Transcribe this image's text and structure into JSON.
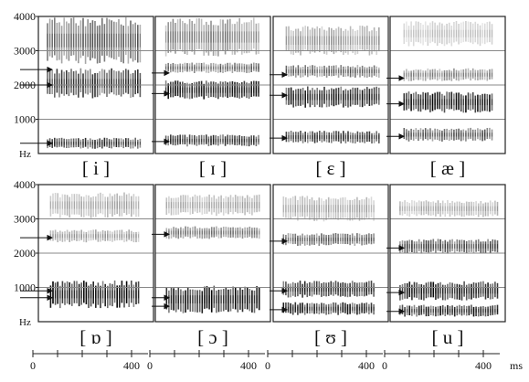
{
  "title": "",
  "y_axis": {
    "ticks": [
      "4000",
      "3000",
      "2000",
      "1000"
    ],
    "unit": "Hz",
    "max": 4000
  },
  "x_axis": {
    "ticks": [
      "0",
      "400"
    ],
    "unit": "ms"
  },
  "rows": [
    {
      "panels": [
        {
          "label": "[ i ]",
          "formants": [
            300,
            2000,
            2450
          ],
          "bands": [
            {
              "f": 300,
              "w": 260,
              "d": 0.85
            },
            {
              "f": 2050,
              "w": 700,
              "d": 0.8
            },
            {
              "f": 3300,
              "w": 1100,
              "d": 0.6
            }
          ]
        },
        {
          "label": "[ ɪ ]",
          "formants": [
            350,
            1750,
            2350
          ],
          "bands": [
            {
              "f": 380,
              "w": 280,
              "d": 0.85
            },
            {
              "f": 1850,
              "w": 450,
              "d": 0.95
            },
            {
              "f": 2500,
              "w": 250,
              "d": 0.6
            },
            {
              "f": 3400,
              "w": 900,
              "d": 0.45
            }
          ]
        },
        {
          "label": "[ ɛ ]",
          "formants": [
            450,
            1700,
            2300
          ],
          "bands": [
            {
              "f": 480,
              "w": 300,
              "d": 0.85
            },
            {
              "f": 1650,
              "w": 500,
              "d": 0.95
            },
            {
              "f": 2400,
              "w": 300,
              "d": 0.6
            },
            {
              "f": 3300,
              "w": 700,
              "d": 0.35
            }
          ]
        },
        {
          "label": "[ æ ]",
          "formants": [
            500,
            1450,
            2200
          ],
          "bands": [
            {
              "f": 550,
              "w": 320,
              "d": 0.7
            },
            {
              "f": 1500,
              "w": 500,
              "d": 1.0
            },
            {
              "f": 2300,
              "w": 300,
              "d": 0.45
            },
            {
              "f": 3500,
              "w": 600,
              "d": 0.2
            }
          ]
        }
      ]
    },
    {
      "panels": [
        {
          "label": "[ ɒ ]",
          "formants": [
            700,
            900,
            2450
          ],
          "bands": [
            {
              "f": 800,
              "w": 650,
              "d": 1.0
            },
            {
              "f": 2500,
              "w": 300,
              "d": 0.35
            },
            {
              "f": 3400,
              "w": 600,
              "d": 0.3
            }
          ]
        },
        {
          "label": "[ ɔ ]",
          "formants": [
            450,
            700,
            2550
          ],
          "bands": [
            {
              "f": 650,
              "w": 650,
              "d": 1.0
            },
            {
              "f": 2600,
              "w": 300,
              "d": 0.5
            },
            {
              "f": 3400,
              "w": 500,
              "d": 0.3
            }
          ]
        },
        {
          "label": "[ ʊ ]",
          "formants": [
            350,
            900,
            2350
          ],
          "bands": [
            {
              "f": 380,
              "w": 300,
              "d": 0.95
            },
            {
              "f": 950,
              "w": 400,
              "d": 0.9
            },
            {
              "f": 2400,
              "w": 300,
              "d": 0.6
            },
            {
              "f": 3300,
              "w": 600,
              "d": 0.3
            }
          ]
        },
        {
          "label": "[ u ]",
          "formants": [
            300,
            850,
            2150
          ],
          "bands": [
            {
              "f": 320,
              "w": 280,
              "d": 0.95
            },
            {
              "f": 900,
              "w": 450,
              "d": 1.0
            },
            {
              "f": 2200,
              "w": 350,
              "d": 0.75
            },
            {
              "f": 3300,
              "w": 400,
              "d": 0.3
            }
          ]
        }
      ]
    }
  ]
}
